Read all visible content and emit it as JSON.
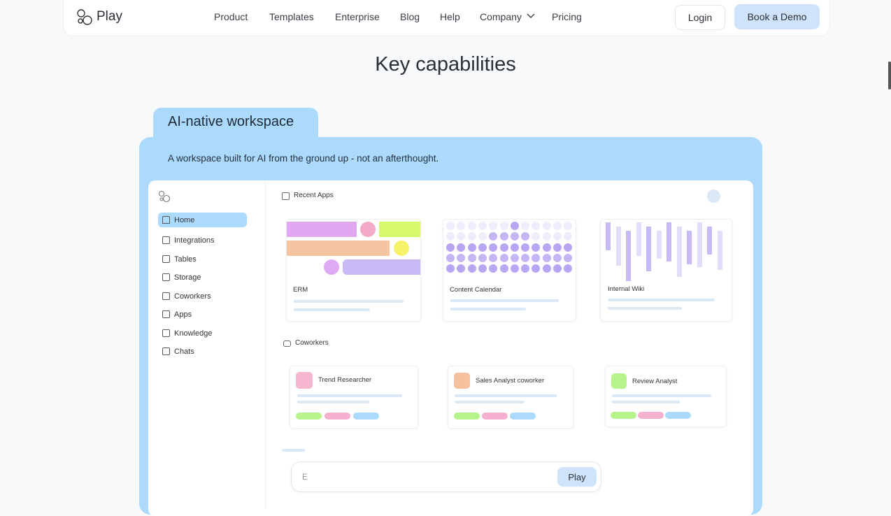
{
  "nav": {
    "logo": "Play",
    "links": [
      "Product",
      "Templates",
      "Enterprise",
      "Blog",
      "Help",
      "Company",
      "Pricing"
    ],
    "login": "Login",
    "cta": "Book a Demo"
  },
  "section": {
    "title": "Key capabilities",
    "tab": "AI-native workspace",
    "description": "A workspace built for AI from the ground up - not an afterthought."
  },
  "sidebar": [
    "Home",
    "Integrations",
    "Tables",
    "Storage",
    "Coworkers",
    "Apps",
    "Knowledge",
    "Chats"
  ],
  "recent_apps": {
    "label": "Recent Apps",
    "apps": [
      "ERM",
      "Content Calendar",
      "Internal Wiki"
    ]
  },
  "coworkers": {
    "label": "Coworkers",
    "items": [
      "Trend Researcher",
      "Sales Analyst coworker",
      "Review Analyst"
    ]
  },
  "chat": {
    "input": "E",
    "button": "Play"
  }
}
